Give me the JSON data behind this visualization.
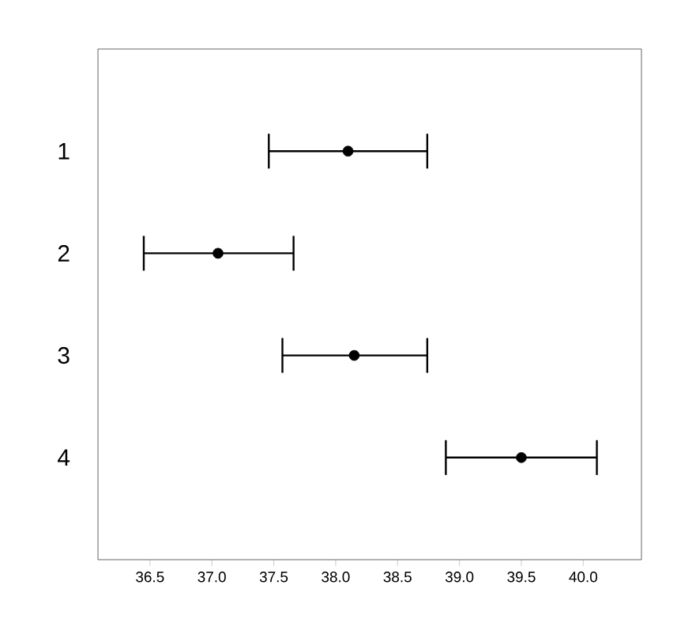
{
  "chart_data": {
    "type": "scatter",
    "orientation": "horizontal",
    "categories": [
      "1",
      "2",
      "3",
      "4"
    ],
    "values": [
      38.1,
      37.05,
      38.15,
      39.5
    ],
    "errors": [
      [
        37.46,
        38.74
      ],
      [
        36.45,
        37.66
      ],
      [
        37.57,
        38.74
      ],
      [
        38.89,
        40.11
      ]
    ],
    "color": "#000000",
    "marker": "circle",
    "xlim": [
      36.08,
      40.47
    ],
    "xticks": [
      {
        "value": 36.5,
        "label": "36.5"
      },
      {
        "value": 37.0,
        "label": "37.0"
      },
      {
        "value": 37.5,
        "label": "37.5"
      },
      {
        "value": 38.0,
        "label": "38.0"
      },
      {
        "value": 38.5,
        "label": "38.5"
      },
      {
        "value": 39.0,
        "label": "39.0"
      },
      {
        "value": 39.5,
        "label": "39.5"
      },
      {
        "value": 40.0,
        "label": "40.0"
      }
    ],
    "grid": false
  }
}
